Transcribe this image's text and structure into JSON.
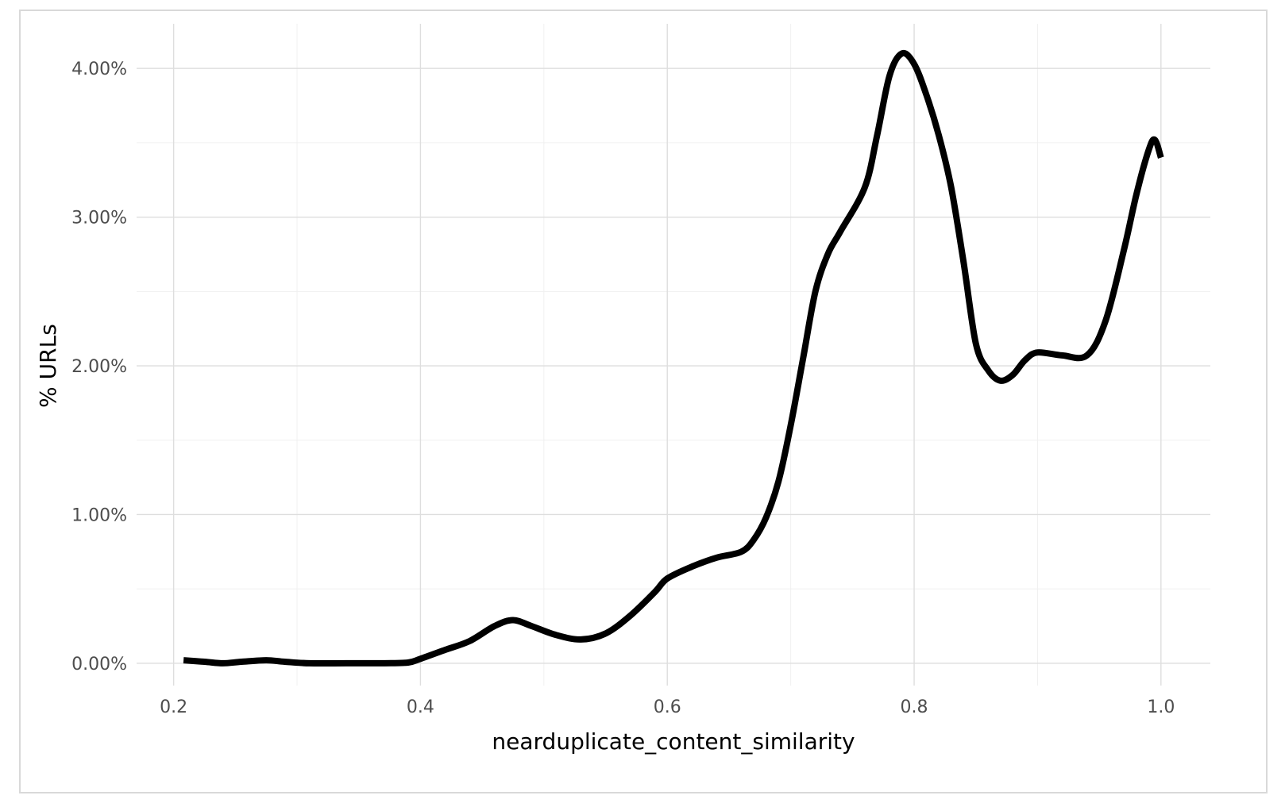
{
  "chart_data": {
    "type": "line",
    "title": "",
    "xlabel": "nearduplicate_content_similarity",
    "ylabel": "% URLs",
    "xlim": [
      0.17,
      1.04
    ],
    "ylim": [
      -0.0015,
      0.043
    ],
    "x_ticks": [
      0.2,
      0.4,
      0.6,
      0.8,
      1.0
    ],
    "x_tick_labels": [
      "0.2",
      "0.4",
      "0.6",
      "0.8",
      "1.0"
    ],
    "y_ticks": [
      0.0,
      0.01,
      0.02,
      0.03,
      0.04
    ],
    "y_tick_labels": [
      "0.00%",
      "1.00%",
      "2.00%",
      "3.00%",
      "4.00%"
    ],
    "grid": true,
    "line_color": "#000000",
    "series": [
      {
        "x": [
          0.208,
          0.225,
          0.24,
          0.255,
          0.275,
          0.29,
          0.31,
          0.34,
          0.37,
          0.39,
          0.4,
          0.42,
          0.44,
          0.46,
          0.475,
          0.49,
          0.51,
          0.53,
          0.55,
          0.57,
          0.59,
          0.6,
          0.62,
          0.64,
          0.66,
          0.67,
          0.68,
          0.69,
          0.7,
          0.71,
          0.72,
          0.73,
          0.74,
          0.76,
          0.77,
          0.78,
          0.79,
          0.8,
          0.81,
          0.82,
          0.83,
          0.84,
          0.85,
          0.86,
          0.87,
          0.88,
          0.89,
          0.9,
          0.92,
          0.94,
          0.955,
          0.97,
          0.98,
          0.99,
          0.995,
          1.0
        ],
        "y": [
          0.0002,
          0.0001,
          0.0,
          0.0001,
          0.0002,
          0.0001,
          0.0,
          0.0,
          0.0,
          5e-05,
          0.0003,
          0.0009,
          0.0015,
          0.0025,
          0.0029,
          0.0025,
          0.0019,
          0.0016,
          0.002,
          0.0032,
          0.0048,
          0.0057,
          0.0065,
          0.0071,
          0.0075,
          0.0083,
          0.0098,
          0.0122,
          0.016,
          0.0205,
          0.025,
          0.0275,
          0.029,
          0.032,
          0.0355,
          0.0395,
          0.041,
          0.0403,
          0.0382,
          0.0355,
          0.032,
          0.027,
          0.0215,
          0.0197,
          0.019,
          0.0194,
          0.0204,
          0.0209,
          0.0207,
          0.0207,
          0.023,
          0.0278,
          0.0315,
          0.0345,
          0.0352,
          0.034
        ]
      }
    ]
  }
}
